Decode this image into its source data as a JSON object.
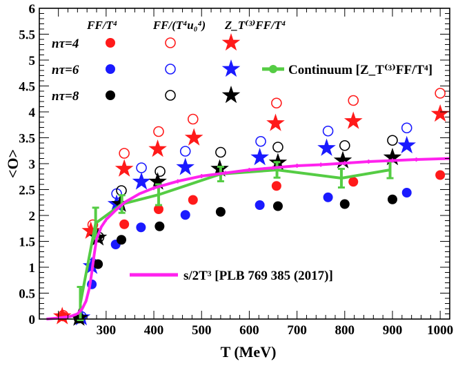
{
  "chart_data": {
    "type": "scatter",
    "title": "",
    "xlabel": "T (MeV)",
    "ylabel": "<O>",
    "xlim": [
      160,
      1020
    ],
    "ylim": [
      0,
      6
    ],
    "xticks": [
      "300",
      "400",
      "500",
      "600",
      "700",
      "800",
      "900",
      "1000"
    ],
    "yticks": [
      "0",
      "0.5",
      "1",
      "1.5",
      "2",
      "2.5",
      "3",
      "3.5",
      "4",
      "4.5",
      "5",
      "5.5",
      "6"
    ],
    "legend": {
      "col_headers": [
        "FF/T⁴",
        "FF/(T⁴u₀⁴)",
        "Z_T⁽³⁾FF/T⁴"
      ],
      "row_labels": [
        "nτ=4",
        "nτ=6",
        "nτ=8"
      ],
      "continuum_label": "Continuum [Z_T⁽³⁾FF/T⁴]",
      "entropy_label": "s/2T³ [PLB 769 385 (2017)]"
    },
    "colors": {
      "nt4": "#ff1a1a",
      "nt6": "#1a1aff",
      "nt8": "#000000",
      "continuum": "#55cc44",
      "entropy": "#ff22ee"
    },
    "series": [
      {
        "name": "FF/T4 nt=4",
        "marker": "filled-circle",
        "color": "nt4",
        "x": [
          210,
          338,
          410,
          482,
          657,
          818,
          1000
        ],
        "y": [
          0.05,
          1.83,
          2.12,
          2.3,
          2.57,
          2.65,
          2.78
        ]
      },
      {
        "name": "FF/(T4u0^4) nt=4",
        "marker": "open-circle",
        "color": "nt4",
        "x": [
          210,
          272,
          338,
          410,
          482,
          657,
          818,
          1000
        ],
        "y": [
          0.07,
          1.82,
          3.2,
          3.62,
          3.86,
          4.17,
          4.22,
          4.36
        ]
      },
      {
        "name": "ZT FF/T4 nt=4",
        "marker": "star",
        "color": "nt4",
        "x": [
          208,
          268,
          338,
          408,
          484,
          655,
          818,
          1000
        ],
        "y": [
          0.05,
          1.7,
          2.9,
          3.28,
          3.5,
          3.78,
          3.82,
          3.96
        ]
      },
      {
        "name": "FF/T4 nt=6",
        "marker": "filled-circle",
        "color": "nt6",
        "x": [
          270,
          320,
          373,
          466,
          622,
          765,
          930
        ],
        "y": [
          0.67,
          1.44,
          1.77,
          2.01,
          2.2,
          2.35,
          2.44
        ]
      },
      {
        "name": "FF/(T4u0^4) nt=6",
        "marker": "open-circle",
        "color": "nt6",
        "x": [
          248,
          272,
          322,
          374,
          466,
          624,
          765,
          930
        ],
        "y": [
          0.05,
          1.07,
          2.42,
          2.92,
          3.24,
          3.43,
          3.63,
          3.69
        ]
      },
      {
        "name": "ZT FF/T4 nt=6",
        "marker": "star",
        "color": "nt6",
        "x": [
          248,
          270,
          322,
          374,
          466,
          622,
          762,
          930
        ],
        "y": [
          0.03,
          1.02,
          2.22,
          2.65,
          2.93,
          3.12,
          3.3,
          3.35
        ]
      },
      {
        "name": "FF/T4 nt=8",
        "marker": "filled-circle",
        "color": "nt8",
        "x": [
          243,
          283,
          332,
          412,
          540,
          660,
          800,
          900
        ],
        "y": [
          0.02,
          1.06,
          1.53,
          1.79,
          2.07,
          2.18,
          2.22,
          2.31
        ]
      },
      {
        "name": "FF/(T4u0^4) nt=8",
        "marker": "open-circle",
        "color": "nt8",
        "x": [
          243,
          285,
          332,
          413,
          540,
          660,
          800,
          900
        ],
        "y": [
          0.02,
          1.58,
          2.48,
          2.85,
          3.22,
          3.32,
          3.35,
          3.45
        ]
      },
      {
        "name": "ZT FF/T4 nt=8",
        "marker": "star",
        "color": "nt8",
        "x": [
          243,
          283,
          330,
          408,
          538,
          660,
          796,
          900
        ],
        "y": [
          0.02,
          1.57,
          2.22,
          2.65,
          2.9,
          3.02,
          3.06,
          3.12
        ]
      },
      {
        "name": "Continuum",
        "marker": "line-errorbar",
        "color": "continuum",
        "x": [
          246,
          278,
          333,
          410,
          540,
          658,
          793,
          895
        ],
        "y": [
          0.3,
          1.85,
          2.22,
          2.4,
          2.8,
          2.88,
          2.72,
          2.88
        ],
        "err": [
          0.32,
          0.3,
          0.17,
          0.2,
          0.14,
          0.15,
          0.18,
          0.16
        ]
      },
      {
        "name": "s/2T^3",
        "marker": "line",
        "color": "entropy",
        "x": [
          175,
          200,
          225,
          240,
          250,
          258,
          265,
          270,
          275,
          280,
          290,
          300,
          320,
          340,
          370,
          400,
          450,
          500,
          550,
          600,
          650,
          700,
          750,
          800,
          850,
          900,
          950,
          1020
        ],
        "y": [
          0.0,
          0.02,
          0.05,
          0.1,
          0.2,
          0.35,
          0.6,
          0.9,
          1.25,
          1.55,
          1.78,
          1.92,
          2.1,
          2.26,
          2.42,
          2.53,
          2.66,
          2.76,
          2.82,
          2.88,
          2.92,
          2.96,
          2.98,
          3.01,
          3.04,
          3.06,
          3.08,
          3.1
        ]
      }
    ]
  }
}
